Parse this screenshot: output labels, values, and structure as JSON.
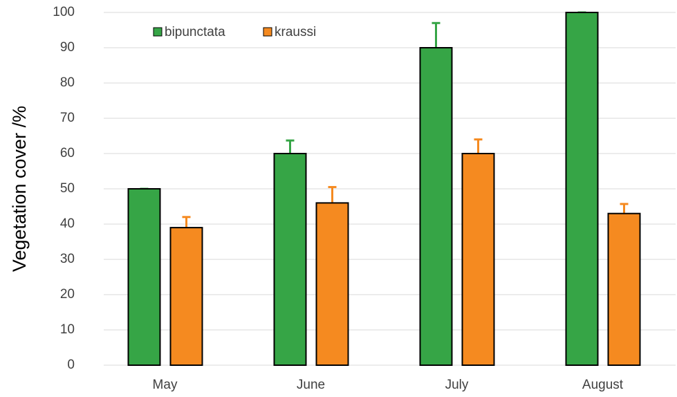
{
  "chart_data": {
    "type": "bar",
    "ylabel": "Vegetation cover /%",
    "categories": [
      "May",
      "June",
      "July",
      "August"
    ],
    "series": [
      {
        "name": "bipunctata",
        "color": "#36a546",
        "values": [
          50,
          60,
          90,
          100
        ],
        "errors": [
          0,
          3.7,
          7,
          0
        ]
      },
      {
        "name": "kraussi",
        "color": "#f58a20",
        "values": [
          39,
          46,
          60,
          43
        ],
        "errors": [
          3,
          4.5,
          4,
          2.7
        ]
      }
    ],
    "ylim": [
      0,
      100
    ],
    "yticks": [
      0,
      10,
      20,
      30,
      40,
      50,
      60,
      70,
      80,
      90,
      100
    ],
    "grid": true,
    "legend": "top-left"
  }
}
